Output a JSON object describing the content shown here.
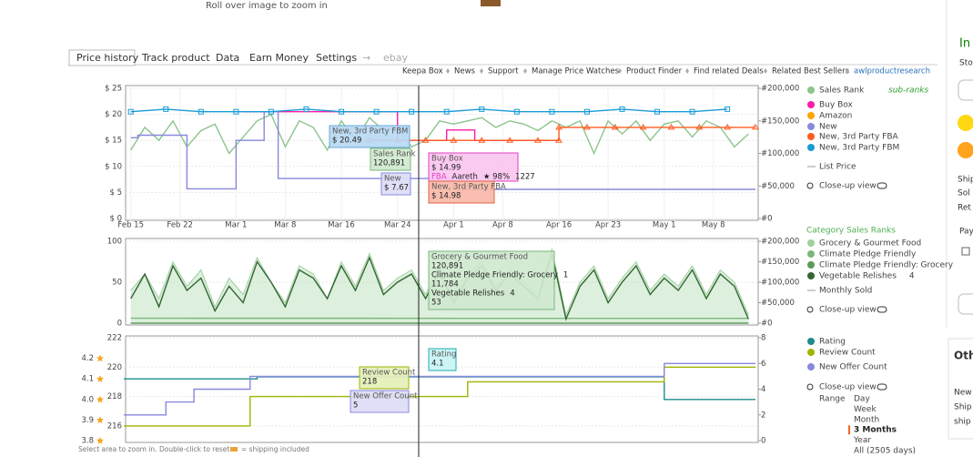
{
  "header": {
    "zoom_hint": "Roll over image to zoom in"
  },
  "tabs": [
    "Price history",
    "Track product",
    "Data",
    "Earn Money",
    "Settings",
    "→",
    "ebay"
  ],
  "links": [
    "Keepa Box",
    "News",
    "Support",
    "Manage Price Watches",
    "Product Finder",
    "Find related Deals",
    "Related Best Sellers",
    "awlproductresearch"
  ],
  "side_fragments": [
    "In",
    "Sto",
    "Ship",
    "Sol",
    "Ret",
    "Pay",
    "Oth",
    "New",
    "Ship",
    "ship"
  ],
  "charts": [
    {
      "type": "line",
      "xlim": [
        "Feb 14",
        "May 14"
      ],
      "xticks": [
        "Feb 15",
        "Feb 22",
        "Mar 1",
        "Mar 8",
        "Mar 16",
        "Mar 24",
        "Apr 1",
        "Apr 8",
        "Apr 16",
        "Apr 23",
        "May 1",
        "May 8"
      ],
      "ylim": [
        0,
        25
      ],
      "yticks": [
        {
          "value": 25,
          "label": "$ 25"
        },
        {
          "value": 20,
          "label": "$ 20"
        },
        {
          "value": 15,
          "label": "$ 15"
        },
        {
          "value": 10,
          "label": "$ 10"
        },
        {
          "value": 5,
          "label": "$ 5"
        },
        {
          "value": 0,
          "label": "$ 0"
        }
      ],
      "y2lim": [
        0,
        200000
      ],
      "y2ticks": [
        {
          "value": 200000,
          "label": "#200,000"
        },
        {
          "value": 150000,
          "label": "#150,000"
        },
        {
          "value": 100000,
          "label": "#100,000"
        },
        {
          "value": 50000,
          "label": "#50,000"
        },
        {
          "value": 0,
          "label": "#0"
        }
      ],
      "grid": true,
      "sub_ranks": "sub-ranks",
      "closeup": "Close-up view",
      "series": [
        {
          "name": "Sales Rank",
          "color": "#8cc48c",
          "style": "line",
          "axis": "y2",
          "x": [
            "Feb 15",
            "Feb 17",
            "Feb 19",
            "Feb 21",
            "Feb 23",
            "Feb 25",
            "Feb 27",
            "Feb 29",
            "Mar 2",
            "Mar 4",
            "Mar 6",
            "Mar 8",
            "Mar 10",
            "Mar 12",
            "Mar 14",
            "Mar 16",
            "Mar 18",
            "Mar 20",
            "Mar 22",
            "Mar 24",
            "Mar 26",
            "Mar 28",
            "Mar 30",
            "Apr 1",
            "Apr 3",
            "Apr 5",
            "Apr 7",
            "Apr 9",
            "Apr 11",
            "Apr 13",
            "Apr 15",
            "Apr 17",
            "Apr 19",
            "Apr 21",
            "Apr 23",
            "Apr 25",
            "Apr 27",
            "Apr 29",
            "May 1",
            "May 3",
            "May 5",
            "May 7",
            "May 9",
            "May 11",
            "May 13"
          ],
          "values": [
            105000,
            140000,
            120000,
            150000,
            110000,
            135000,
            145000,
            100000,
            125000,
            150000,
            160000,
            110000,
            150000,
            140000,
            105000,
            150000,
            120000,
            155000,
            135000,
            140000,
            110000,
            120000,
            150000,
            145000,
            150000,
            155000,
            140000,
            150000,
            145000,
            135000,
            150000,
            140000,
            150000,
            100000,
            150000,
            130000,
            150000,
            120000,
            145000,
            150000,
            125000,
            150000,
            140000,
            110000,
            130000
          ]
        },
        {
          "name": "Buy Box",
          "color": "#ff1aa8",
          "style": "line",
          "x": [
            "Mar 2",
            "Mar 24",
            "Mar 24",
            "Mar 31",
            "Mar 31",
            "Apr 4",
            "Apr 4",
            "Apr 16"
          ],
          "values": [
            20.5,
            20.5,
            15,
            15,
            17,
            17,
            15,
            15
          ]
        },
        {
          "name": "Amazon",
          "color": "#ffa500",
          "style": "line",
          "x": [],
          "values": []
        },
        {
          "name": "New",
          "color": "#8888dd",
          "style": "line",
          "x": [
            "Feb 15",
            "Feb 16",
            "Feb 16",
            "Feb 23",
            "Feb 23",
            "Mar 1",
            "Mar 1",
            "Mar 5",
            "Mar 5",
            "Mar 7",
            "Mar 7",
            "Apr 1",
            "Apr 1",
            "May 14"
          ],
          "values": [
            15.5,
            15.5,
            16,
            16,
            5.7,
            5.7,
            15,
            15,
            20.5,
            20.5,
            7.67,
            7.67,
            5.6,
            5.6
          ]
        },
        {
          "name": "New, 3rd Party FBA",
          "color": "#ff5a1e",
          "style": "triangles",
          "x": [
            "Mar 20",
            "Mar 24",
            "Mar 28",
            "Apr 1",
            "Apr 5",
            "Apr 9",
            "Apr 13",
            "Apr 16",
            "Apr 16",
            "Apr 20",
            "Apr 24",
            "Apr 28",
            "May 2",
            "May 6",
            "May 10",
            "May 14"
          ],
          "values": [
            15,
            15,
            15,
            15,
            15,
            15,
            15,
            15,
            17.5,
            17.5,
            17.5,
            17.5,
            17.5,
            17.5,
            17.5,
            17.5
          ]
        },
        {
          "name": "New, 3rd Party FBM",
          "color": "#1a9bd7",
          "style": "squares",
          "x": [
            "Feb 15",
            "Feb 20",
            "Feb 25",
            "Mar 1",
            "Mar 6",
            "Mar 11",
            "Mar 16",
            "Mar 21",
            "Mar 26",
            "Mar 31",
            "Apr 5",
            "Apr 10",
            "Apr 15",
            "Apr 20",
            "Apr 25",
            "Apr 30",
            "May 5",
            "May 10"
          ],
          "values": [
            20.5,
            21,
            20.5,
            20.5,
            20.5,
            21,
            20.5,
            20.5,
            20.5,
            20.5,
            21,
            20.5,
            20.5,
            20.5,
            21,
            20.5,
            20.5,
            21
          ]
        },
        {
          "name": "List Price",
          "color": "#999999",
          "style": "reference",
          "x": [],
          "values": []
        }
      ],
      "tooltips": [
        {
          "lines": [
            [
              "New, 3rd Party FBM"
            ],
            [
              "$ 20.49"
            ]
          ]
        },
        {
          "lines": [
            [
              "Sales Rank"
            ],
            [
              "120,891"
            ]
          ]
        },
        {
          "lines": [
            [
              "New"
            ],
            [
              "$ 7.67"
            ]
          ]
        },
        {
          "lines": [
            [
              "Buy Box"
            ],
            [
              "$ 14.99"
            ],
            [
              "FBA",
              "Aareth",
              "★ 98%",
              "1227"
            ]
          ]
        },
        {
          "lines": [
            [
              "New, 3rd Party FBA"
            ],
            [
              "$ 14.98"
            ]
          ]
        }
      ]
    },
    {
      "type": "line",
      "xlim": [
        "Feb 14",
        "May 14"
      ],
      "ylim": [
        0,
        100
      ],
      "yticks": [
        100,
        50,
        0
      ],
      "y2lim": [
        0,
        200000
      ],
      "y2ticks": [
        {
          "value": 200000,
          "label": "#200,000"
        },
        {
          "value": 150000,
          "label": "#150,000"
        },
        {
          "value": 100000,
          "label": "#100,000"
        },
        {
          "value": 50000,
          "label": "#50,000"
        },
        {
          "value": 0,
          "label": "#0"
        }
      ],
      "grid": true,
      "legend_title": "Category Sales Ranks",
      "subcount": "4",
      "closeup": "Close-up view",
      "series": [
        {
          "name": "Grocery & Gourmet Food",
          "color": "#9fd09f",
          "style": "area",
          "axis": "y2",
          "x": [
            "Feb 15",
            "Feb 17",
            "Feb 19",
            "Feb 21",
            "Feb 23",
            "Feb 25",
            "Feb 27",
            "Feb 29",
            "Mar 2",
            "Mar 4",
            "Mar 6",
            "Mar 8",
            "Mar 10",
            "Mar 12",
            "Mar 14",
            "Mar 16",
            "Mar 18",
            "Mar 20",
            "Mar 22",
            "Mar 24",
            "Mar 26",
            "Mar 28",
            "Mar 30",
            "Apr 1",
            "Apr 3",
            "Apr 5",
            "Apr 7",
            "Apr 9",
            "Apr 11",
            "Apr 13",
            "Apr 15",
            "Apr 17",
            "Apr 19",
            "Apr 21",
            "Apr 23",
            "Apr 25",
            "Apr 27",
            "Apr 29",
            "May 1",
            "May 3",
            "May 5",
            "May 7",
            "May 9",
            "May 11",
            "May 13"
          ],
          "values": [
            80000,
            120000,
            60000,
            150000,
            90000,
            130000,
            40000,
            110000,
            70000,
            160000,
            100000,
            50000,
            140000,
            120000,
            60000,
            150000,
            90000,
            170000,
            80000,
            110000,
            130000,
            70000,
            140000,
            60000,
            120000,
            150000,
            90000,
            130000,
            100000,
            70000,
            180000,
            20000,
            100000,
            140000,
            60000,
            110000,
            150000,
            80000,
            120000,
            90000,
            140000,
            70000,
            130000,
            100000,
            20000
          ]
        },
        {
          "name": "Climate Pledge Friendly",
          "color": "#7ab87a",
          "style": "line",
          "axis": "y2",
          "x": [
            "Feb 15",
            "May 13"
          ],
          "values": [
            12000,
            11784
          ]
        },
        {
          "name": "Climate Pledge Friendly: Grocery",
          "color": "#5a9a5a",
          "style": "line",
          "axis": "y2",
          "x": [
            "Feb 15",
            "May 13"
          ],
          "values": [
            1,
            1
          ]
        },
        {
          "name": "Vegetable Relishes",
          "color": "#336633",
          "style": "line",
          "x": [
            "Feb 15",
            "Feb 17",
            "Feb 19",
            "Feb 21",
            "Feb 23",
            "Feb 25",
            "Feb 27",
            "Feb 29",
            "Mar 2",
            "Mar 4",
            "Mar 6",
            "Mar 8",
            "Mar 10",
            "Mar 12",
            "Mar 14",
            "Mar 16",
            "Mar 18",
            "Mar 20",
            "Mar 22",
            "Mar 24",
            "Mar 26",
            "Mar 28",
            "Mar 30",
            "Apr 1",
            "Apr 3",
            "Apr 5",
            "Apr 7",
            "Apr 9",
            "Apr 11",
            "Apr 13",
            "Apr 15",
            "Apr 17",
            "Apr 19",
            "Apr 21",
            "Apr 23",
            "Apr 25",
            "Apr 27",
            "Apr 29",
            "May 1",
            "May 3",
            "May 5",
            "May 7",
            "May 9",
            "May 11",
            "May 13"
          ],
          "values": [
            30,
            60,
            20,
            70,
            40,
            55,
            15,
            45,
            25,
            75,
            50,
            20,
            65,
            55,
            30,
            70,
            40,
            80,
            35,
            50,
            60,
            30,
            65,
            25,
            55,
            70,
            40,
            60,
            45,
            30,
            85,
            5,
            45,
            65,
            25,
            50,
            70,
            35,
            55,
            40,
            65,
            30,
            60,
            45,
            5
          ]
        },
        {
          "name": "Monthly Sold",
          "color": "#999999",
          "style": "reference",
          "x": [],
          "values": []
        }
      ],
      "tooltips": [
        {
          "lines": [
            [
              "Grocery & Gourmet Food"
            ],
            [
              "120,891"
            ],
            [
              "Climate Pledge Friendly: Grocery",
              "1"
            ],
            [
              "11,784"
            ],
            [
              "Vegetable Relishes",
              "4"
            ],
            [
              "53"
            ]
          ]
        }
      ]
    },
    {
      "type": "line",
      "xlim": [
        "Feb 14",
        "May 14"
      ],
      "ylim": [
        215,
        222
      ],
      "yticks": [
        222,
        220,
        218,
        216
      ],
      "rating_lim": [
        3.8,
        4.3
      ],
      "rating_ticks": [
        4.2,
        4.1,
        {
          "value": 4,
          "label": "4.0"
        },
        3.9,
        3.8
      ],
      "y2lim": [
        0,
        8
      ],
      "y2ticks": [
        8,
        6,
        4,
        2,
        0
      ],
      "grid": true,
      "closeup": "Close-up view",
      "range": {
        "label": "Range",
        "options": [
          "Day",
          "Week",
          "Month",
          "3 Months",
          "Year",
          "All (2505 days)"
        ],
        "selected": 3
      },
      "series": [
        {
          "name": "Rating",
          "color": "#1e8c8c",
          "style": "line",
          "axis": "rating",
          "x": [
            "Feb 14",
            "Mar 4",
            "Mar 4",
            "May 1",
            "May 1",
            "May 14"
          ],
          "values": [
            4.1,
            4.1,
            4.11,
            4.11,
            4.0,
            4.0
          ]
        },
        {
          "name": "Review Count",
          "color": "#a0b400",
          "style": "line",
          "x": [
            "Feb 14",
            "Mar 3",
            "Mar 3",
            "Apr 3",
            "Apr 3",
            "May 1",
            "May 1",
            "May 14"
          ],
          "values": [
            216,
            216,
            218,
            218,
            219,
            219,
            220,
            220
          ]
        },
        {
          "name": "New Offer Count",
          "color": "#8888dd",
          "style": "line",
          "axis": "y2",
          "x": [
            "Feb 14",
            "Feb 20",
            "Feb 20",
            "Feb 24",
            "Feb 24",
            "Mar 3",
            "Mar 3",
            "Mar 10",
            "Mar 10",
            "May 1",
            "May 1",
            "May 14"
          ],
          "values": [
            2,
            2,
            3,
            3,
            4,
            4,
            5,
            5,
            5,
            5,
            6,
            6
          ]
        }
      ],
      "tooltips": [
        {
          "lines": [
            [
              "Rating"
            ],
            [
              "4.1"
            ]
          ]
        },
        {
          "lines": [
            [
              "Review Count"
            ],
            [
              "218"
            ]
          ]
        },
        {
          "lines": [
            [
              "New Offer Count"
            ],
            [
              "5"
            ]
          ]
        }
      ]
    }
  ],
  "footer": {
    "hint": "Select area to zoom in. Double-click to reset.",
    "shipping_note": "= shipping included"
  }
}
